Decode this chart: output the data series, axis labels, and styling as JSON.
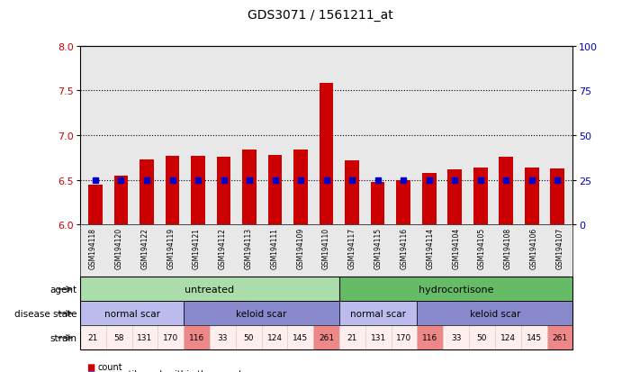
{
  "title": "GDS3071 / 1561211_at",
  "samples": [
    "GSM194118",
    "GSM194120",
    "GSM194122",
    "GSM194119",
    "GSM194121",
    "GSM194112",
    "GSM194113",
    "GSM194111",
    "GSM194109",
    "GSM194110",
    "GSM194117",
    "GSM194115",
    "GSM194116",
    "GSM194114",
    "GSM194104",
    "GSM194105",
    "GSM194108",
    "GSM194106",
    "GSM194107"
  ],
  "bar_values": [
    6.45,
    6.55,
    6.73,
    6.77,
    6.77,
    6.76,
    6.84,
    6.78,
    6.84,
    7.58,
    6.72,
    6.48,
    6.5,
    6.58,
    6.62,
    6.64,
    6.76,
    6.64,
    6.63
  ],
  "percentile_values": [
    6.5,
    6.5,
    6.5,
    6.5,
    6.5,
    6.5,
    6.5,
    6.5,
    6.5,
    6.5,
    6.5,
    6.5,
    6.5,
    6.5,
    6.5,
    6.5,
    6.5,
    6.5,
    6.5
  ],
  "bar_color": "#cc0000",
  "percentile_color": "#0000cc",
  "ymin": 6.0,
  "ymax": 8.0,
  "y2min": 0,
  "y2max": 100,
  "yticks": [
    6.0,
    6.5,
    7.0,
    7.5,
    8.0
  ],
  "y2ticks": [
    0,
    25,
    50,
    75,
    100
  ],
  "dotted_lines": [
    6.5,
    7.0,
    7.5
  ],
  "agent_groups": [
    {
      "label": "untreated",
      "start": 0,
      "end": 9,
      "color": "#aaddaa"
    },
    {
      "label": "hydrocortisone",
      "start": 10,
      "end": 18,
      "color": "#66bb66"
    }
  ],
  "disease_groups": [
    {
      "label": "normal scar",
      "start": 0,
      "end": 3,
      "color": "#bbbbee"
    },
    {
      "label": "keloid scar",
      "start": 4,
      "end": 9,
      "color": "#8888cc"
    },
    {
      "label": "normal scar",
      "start": 10,
      "end": 12,
      "color": "#bbbbee"
    },
    {
      "label": "keloid scar",
      "start": 13,
      "end": 18,
      "color": "#8888cc"
    }
  ],
  "strain_values": [
    "21",
    "58",
    "131",
    "170",
    "116",
    "33",
    "50",
    "124",
    "145",
    "261",
    "21",
    "131",
    "170",
    "116",
    "33",
    "50",
    "124",
    "145",
    "261"
  ],
  "strain_highlight": [
    4,
    9,
    13,
    18
  ],
  "strain_color_normal": "#ffeeee",
  "strain_color_highlight": "#ee8888",
  "ylabel_color": "#cc0000",
  "y2label_color": "#0000cc",
  "legend_count_color": "#cc0000",
  "legend_percentile_color": "#0000cc",
  "chart_bg": "#e8e8e8",
  "gap_color": "#ffffff"
}
